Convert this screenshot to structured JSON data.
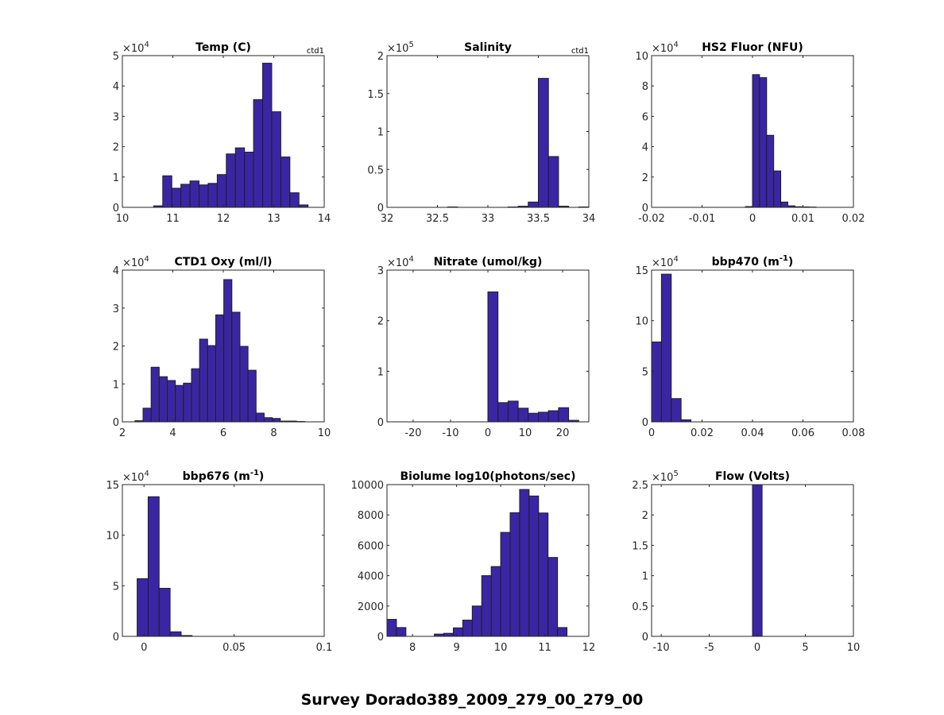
{
  "figure": {
    "suptitle": "Survey Dorado389_2009_279_00_279_00",
    "bar_color": "#3a26a4",
    "edge_color": "#1f1f1f",
    "axes_color": "#262626"
  },
  "chart_data": [
    {
      "type": "bar",
      "title": "Temp (C)",
      "corner_label": "ctd1",
      "exponent": "4",
      "xlim": [
        10,
        14
      ],
      "ylim": [
        0,
        5
      ],
      "xticks": [
        10,
        11,
        12,
        13,
        14
      ],
      "xtick_labels": [
        "10",
        "11",
        "12",
        "13",
        "14"
      ],
      "yticks": [
        0,
        1,
        2,
        3,
        4,
        5
      ],
      "ytick_labels": [
        "0",
        "1",
        "2",
        "3",
        "4",
        "5"
      ],
      "bin_edges": [
        10.62,
        10.8,
        10.98,
        11.16,
        11.34,
        11.52,
        11.7,
        11.88,
        12.06,
        12.24,
        12.42,
        12.6,
        12.78,
        12.96,
        13.14,
        13.32,
        13.5,
        13.68
      ],
      "values": [
        0.05,
        1.04,
        0.63,
        0.76,
        0.87,
        0.74,
        0.79,
        1.08,
        1.76,
        1.96,
        1.82,
        3.55,
        4.75,
        3.15,
        1.66,
        0.48,
        0.08
      ]
    },
    {
      "type": "bar",
      "title": "Salinity",
      "corner_label": "ctd1",
      "exponent": "5",
      "xlim": [
        32,
        34
      ],
      "ylim": [
        0,
        2
      ],
      "xticks": [
        32,
        32.5,
        33,
        33.5,
        34
      ],
      "xtick_labels": [
        "32",
        "32.5",
        "33",
        "33.5",
        "34"
      ],
      "yticks": [
        0,
        0.5,
        1,
        1.5,
        2
      ],
      "ytick_labels": [
        "0",
        "0.5",
        "1",
        "1.5",
        "2"
      ],
      "bin_edges": [
        32.0,
        32.1,
        32.2,
        32.3,
        32.4,
        32.5,
        32.6,
        32.7,
        32.8,
        32.9,
        33.0,
        33.1,
        33.2,
        33.3,
        33.4,
        33.5,
        33.6,
        33.7,
        33.8,
        33.9,
        34.0
      ],
      "values": [
        0,
        0,
        0,
        0,
        0,
        0,
        0.005,
        0,
        0,
        0,
        0,
        0,
        0.005,
        0.015,
        0.07,
        1.7,
        0.67,
        0.015,
        0,
        0.005
      ]
    },
    {
      "type": "bar",
      "title": "HS2 Fluor (NFU)",
      "corner_label": "",
      "exponent": "4",
      "xlim": [
        -0.02,
        0.02
      ],
      "ylim": [
        0,
        10
      ],
      "xticks": [
        -0.02,
        -0.01,
        0,
        0.01,
        0.02
      ],
      "xtick_labels": [
        "-0.02",
        "-0.01",
        "0",
        "0.01",
        "0.02"
      ],
      "yticks": [
        0,
        2,
        4,
        6,
        8,
        10
      ],
      "ytick_labels": [
        "0",
        "2",
        "4",
        "6",
        "8",
        "10"
      ],
      "bin_edges": [
        -0.0014,
        0.0,
        0.0014,
        0.0028,
        0.0042,
        0.0056,
        0.007,
        0.0084,
        0.0098,
        0.0112,
        0.0126
      ],
      "values": [
        0.05,
        8.75,
        8.55,
        4.75,
        2.4,
        0.35,
        0.1,
        0.04,
        0.03,
        0.02
      ]
    },
    {
      "type": "bar",
      "title": "CTD1 Oxy (ml/l)",
      "corner_label": "",
      "exponent": "4",
      "xlim": [
        2,
        10
      ],
      "ylim": [
        0,
        4
      ],
      "xticks": [
        2,
        4,
        6,
        8,
        10
      ],
      "xtick_labels": [
        "2",
        "4",
        "6",
        "8",
        "10"
      ],
      "yticks": [
        0,
        1,
        2,
        3,
        4
      ],
      "ytick_labels": [
        "0",
        "1",
        "2",
        "3",
        "4"
      ],
      "bin_edges": [
        2.5,
        2.82,
        3.14,
        3.46,
        3.78,
        4.1,
        4.42,
        4.74,
        5.06,
        5.38,
        5.7,
        6.02,
        6.34,
        6.66,
        6.98,
        7.3,
        7.62,
        7.94,
        8.26,
        8.58,
        8.9,
        9.22
      ],
      "values": [
        0.03,
        0.36,
        1.44,
        1.19,
        1.09,
        0.96,
        1.02,
        1.4,
        2.18,
        2.01,
        2.82,
        3.75,
        2.89,
        1.99,
        1.36,
        0.23,
        0.11,
        0.09,
        0.02,
        0.02,
        0.01
      ]
    },
    {
      "type": "bar",
      "title": "Nitrate (umol/kg)",
      "corner_label": "",
      "exponent": "4",
      "xlim": [
        -27,
        27
      ],
      "ylim": [
        0,
        3
      ],
      "xticks": [
        -20,
        -10,
        0,
        10,
        20
      ],
      "xtick_labels": [
        "-20",
        "-10",
        "0",
        "10",
        "20"
      ],
      "yticks": [
        0,
        1,
        2,
        3
      ],
      "ytick_labels": [
        "0",
        "1",
        "2",
        "3"
      ],
      "bin_edges": [
        0.0,
        2.7,
        5.4,
        8.1,
        10.8,
        13.5,
        16.2,
        18.9,
        21.6,
        24.3
      ],
      "values": [
        2.57,
        0.38,
        0.41,
        0.27,
        0.17,
        0.19,
        0.22,
        0.28,
        0.03
      ]
    },
    {
      "type": "bar",
      "title": "bbp470 (m",
      "title_sup": "-1",
      "title_end": ")",
      "corner_label": "",
      "exponent": "4",
      "xlim": [
        0,
        0.08
      ],
      "ylim": [
        0,
        15
      ],
      "xticks": [
        0,
        0.02,
        0.04,
        0.06,
        0.08
      ],
      "xtick_labels": [
        "0",
        "0.02",
        "0.04",
        "0.06",
        "0.08"
      ],
      "yticks": [
        0,
        5,
        10,
        15
      ],
      "ytick_labels": [
        "0",
        "5",
        "10",
        "15"
      ],
      "bin_edges": [
        0.0,
        0.0039,
        0.0078,
        0.0117,
        0.0156
      ],
      "values": [
        7.9,
        14.6,
        2.3,
        0.2
      ]
    },
    {
      "type": "bar",
      "title": "bbp676 (m",
      "title_sup": "-1",
      "title_end": ")",
      "corner_label": "",
      "exponent": "4",
      "xlim": [
        -0.012,
        0.1
      ],
      "ylim": [
        0,
        15
      ],
      "xticks": [
        0,
        0.05,
        0.1
      ],
      "xtick_labels": [
        "0",
        "0.05",
        "0.1"
      ],
      "yticks": [
        0,
        5,
        10,
        15
      ],
      "ytick_labels": [
        "0",
        "5",
        "10",
        "15"
      ],
      "bin_edges": [
        -0.0038,
        0.0023,
        0.0084,
        0.0145,
        0.0206,
        0.0267
      ],
      "values": [
        5.7,
        13.8,
        4.75,
        0.45,
        0.08
      ]
    },
    {
      "type": "bar",
      "title": "Biolume log10(photons/sec)",
      "corner_label": "",
      "exponent": "",
      "xlim": [
        7.42,
        12
      ],
      "ylim": [
        0,
        10000
      ],
      "xticks": [
        8,
        9,
        10,
        11,
        12
      ],
      "xtick_labels": [
        "8",
        "9",
        "10",
        "11",
        "12"
      ],
      "yticks": [
        0,
        2000,
        4000,
        6000,
        8000,
        10000
      ],
      "ytick_labels": [
        "0",
        "2000",
        "4000",
        "6000",
        "8000",
        "10000"
      ],
      "bin_edges": [
        7.42,
        7.635,
        7.85,
        8.065,
        8.28,
        8.495,
        8.71,
        8.925,
        9.14,
        9.355,
        9.57,
        9.785,
        10.0,
        10.215,
        10.43,
        10.645,
        10.86,
        11.075,
        11.29,
        11.505,
        11.72
      ],
      "values": [
        1120,
        580,
        0,
        0,
        0,
        150,
        200,
        560,
        1070,
        2000,
        4000,
        4600,
        6850,
        8150,
        9680,
        9250,
        8130,
        5200,
        580,
        0
      ]
    },
    {
      "type": "bar",
      "title": "Flow (Volts)",
      "corner_label": "",
      "exponent": "5",
      "xlim": [
        -11,
        10
      ],
      "ylim": [
        0,
        2.5
      ],
      "xticks": [
        -10,
        -5,
        0,
        5,
        10
      ],
      "xtick_labels": [
        "-10",
        "-5",
        "0",
        "5",
        "10"
      ],
      "yticks": [
        0,
        0.5,
        1,
        1.5,
        2,
        2.5
      ],
      "ytick_labels": [
        "0",
        "0.5",
        "1",
        "1.5",
        "2",
        "2.5"
      ],
      "bin_edges": [
        -0.5,
        0.5
      ],
      "values": [
        2.5
      ]
    }
  ]
}
